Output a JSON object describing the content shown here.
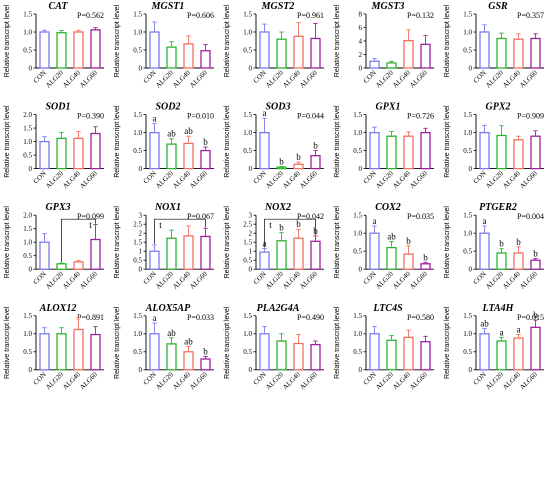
{
  "chart_data": {
    "type": "bar",
    "categories": [
      "CON",
      "ALG20",
      "ALG40",
      "ALG60"
    ],
    "series_colors": [
      "#7B7BEF",
      "#2DB52D",
      "#F07060",
      "#A020A0"
    ],
    "ylabel": "Relative transcript level",
    "panels": [
      {
        "title": "CAT",
        "pvalue": "P=0.562",
        "ylim": [
          0,
          1.5
        ],
        "ticks": [
          0,
          0.5,
          1.0,
          1.5
        ],
        "tick_labels": [
          "0",
          "0.5",
          "1.0",
          "1.5"
        ],
        "values": [
          1.0,
          0.98,
          1.0,
          1.06
        ],
        "errors": [
          0.05,
          0.06,
          0.05,
          0.06
        ],
        "letters": [
          "",
          "",
          "",
          ""
        ]
      },
      {
        "title": "MGST1",
        "pvalue": "P=0.606",
        "ylim": [
          0,
          1.5
        ],
        "ticks": [
          0,
          0.5,
          1.0,
          1.5
        ],
        "tick_labels": [
          "0",
          "0.5",
          "1.0",
          "1.5"
        ],
        "values": [
          1.0,
          0.58,
          0.67,
          0.48
        ],
        "errors": [
          0.28,
          0.15,
          0.22,
          0.17
        ],
        "letters": [
          "",
          "",
          "",
          ""
        ]
      },
      {
        "title": "MGST2",
        "pvalue": "P=0.961",
        "ylim": [
          0,
          1.5
        ],
        "ticks": [
          0,
          0.5,
          1.0,
          1.5
        ],
        "tick_labels": [
          "0",
          "0.5",
          "1.0",
          "1.5"
        ],
        "values": [
          1.0,
          0.8,
          0.88,
          0.82
        ],
        "errors": [
          0.22,
          0.2,
          0.38,
          0.42
        ],
        "letters": [
          "",
          "",
          "",
          ""
        ]
      },
      {
        "title": "MGST3",
        "pvalue": "P=0.132",
        "ylim": [
          0,
          8
        ],
        "ticks": [
          0,
          2,
          4,
          6,
          8
        ],
        "tick_labels": [
          "0",
          "2",
          "4",
          "6",
          "8"
        ],
        "values": [
          1.0,
          0.75,
          4.05,
          3.5
        ],
        "errors": [
          0.4,
          0.25,
          1.6,
          1.3
        ],
        "letters": [
          "",
          "",
          "",
          ""
        ]
      },
      {
        "title": "GSR",
        "pvalue": "P=0.357",
        "ylim": [
          0,
          1.5
        ],
        "ticks": [
          0,
          0.5,
          1.0,
          1.5
        ],
        "tick_labels": [
          "0",
          "0.5",
          "1.0",
          "1.5"
        ],
        "values": [
          1.0,
          0.82,
          0.8,
          0.82
        ],
        "errors": [
          0.2,
          0.15,
          0.15,
          0.13
        ],
        "letters": [
          "",
          "",
          "",
          ""
        ]
      },
      {
        "title": "SOD1",
        "pvalue": "P=0.390",
        "ylim": [
          0,
          2.0
        ],
        "ticks": [
          0,
          0.5,
          1.0,
          1.5,
          2.0
        ],
        "tick_labels": [
          "0",
          "0.5",
          "1.0",
          "1.5",
          "2.0"
        ],
        "values": [
          1.0,
          1.12,
          1.12,
          1.3
        ],
        "errors": [
          0.18,
          0.22,
          0.25,
          0.25
        ],
        "letters": [
          "",
          "",
          "",
          ""
        ]
      },
      {
        "title": "SOD2",
        "pvalue": "P=0.010",
        "ylim": [
          0,
          1.5
        ],
        "ticks": [
          0,
          0.5,
          1.0,
          1.5
        ],
        "tick_labels": [
          "0",
          "0.5",
          "1.0",
          "1.5"
        ],
        "values": [
          1.0,
          0.68,
          0.7,
          0.5
        ],
        "errors": [
          0.25,
          0.15,
          0.2,
          0.1
        ],
        "letters": [
          "a",
          "ab",
          "ab",
          "b"
        ]
      },
      {
        "title": "SOD3",
        "pvalue": "P=0.044",
        "ylim": [
          0,
          1.5
        ],
        "ticks": [
          0,
          0.5,
          1.0,
          1.5
        ],
        "tick_labels": [
          "0",
          "0.5",
          "1.0",
          "1.5"
        ],
        "values": [
          1.0,
          0.04,
          0.12,
          0.36
        ],
        "errors": [
          0.4,
          0.02,
          0.06,
          0.14
        ],
        "letters": [
          "a",
          "b",
          "b",
          "b"
        ]
      },
      {
        "title": "GPX1",
        "pvalue": "P=0.726",
        "ylim": [
          0,
          1.5
        ],
        "ticks": [
          0,
          0.5,
          1.0,
          1.5
        ],
        "tick_labels": [
          "0",
          "0.5",
          "1.0",
          "1.5"
        ],
        "values": [
          1.0,
          0.9,
          0.9,
          1.0
        ],
        "errors": [
          0.15,
          0.13,
          0.12,
          0.12
        ],
        "letters": [
          "",
          "",
          "",
          ""
        ]
      },
      {
        "title": "GPX2",
        "pvalue": "P=0.909",
        "ylim": [
          0,
          1.5
        ],
        "ticks": [
          0,
          0.5,
          1.0,
          1.5
        ],
        "tick_labels": [
          "0",
          "0.5",
          "1.0",
          "1.5"
        ],
        "values": [
          1.0,
          0.92,
          0.8,
          0.9
        ],
        "errors": [
          0.2,
          0.27,
          0.1,
          0.15
        ],
        "letters": [
          "",
          "",
          "",
          ""
        ]
      },
      {
        "title": "GPX3",
        "pvalue": "P=0.099",
        "ylim": [
          0,
          2.0
        ],
        "ticks": [
          0,
          0.5,
          1.0,
          1.5,
          2.0
        ],
        "tick_labels": [
          "0",
          "0.5",
          "1.0",
          "1.5",
          "2.0"
        ],
        "values": [
          1.0,
          0.2,
          0.27,
          1.1
        ],
        "errors": [
          0.32,
          0.03,
          0.05,
          0.55
        ],
        "letters": [
          "",
          "",
          "",
          ""
        ],
        "bracket": {
          "from": 1,
          "to": 3,
          "label": "t"
        }
      },
      {
        "title": "NOX1",
        "pvalue": "P=0.067",
        "ylim": [
          0,
          3.0
        ],
        "ticks": [
          0,
          0.5,
          1.0,
          1.5,
          2.0,
          2.5,
          3.0
        ],
        "tick_labels": [
          "0",
          "0.5",
          "1",
          "1.5",
          "2",
          "2.5",
          "3"
        ],
        "values": [
          1.0,
          1.72,
          1.85,
          1.82
        ],
        "errors": [
          0.35,
          0.45,
          0.55,
          0.45
        ],
        "letters": [
          "",
          "",
          "",
          ""
        ],
        "bracket": {
          "from": 0,
          "to": 3,
          "label": "t"
        }
      },
      {
        "title": "NOX2",
        "pvalue": "P=0.042",
        "ylim": [
          0,
          3.0
        ],
        "ticks": [
          0,
          0.5,
          1.0,
          1.5,
          2.0,
          2.5,
          3.0
        ],
        "tick_labels": [
          "0",
          "0.5",
          "1",
          "1.5",
          "2",
          "2.5",
          "3"
        ],
        "values": [
          0.95,
          1.58,
          1.72,
          1.55
        ],
        "errors": [
          0.2,
          0.45,
          0.5,
          0.3
        ],
        "letters": [
          "a",
          "b",
          "b",
          "b"
        ],
        "bracket": {
          "from": 0,
          "to": 3,
          "label": "t"
        }
      },
      {
        "title": "COX2",
        "pvalue": "P=0.035",
        "ylim": [
          0,
          1.5
        ],
        "ticks": [
          0,
          0.5,
          1.0,
          1.5
        ],
        "tick_labels": [
          "0",
          "0.5",
          "1.0",
          "1.5"
        ],
        "values": [
          1.0,
          0.6,
          0.42,
          0.15
        ],
        "errors": [
          0.2,
          0.17,
          0.23,
          0.04
        ],
        "letters": [
          "a",
          "ab",
          "b",
          "b"
        ]
      },
      {
        "title": "PTGER2",
        "pvalue": "P=0.004",
        "ylim": [
          0,
          1.5
        ],
        "ticks": [
          0,
          0.5,
          1.0,
          1.5
        ],
        "tick_labels": [
          "0",
          "0.5",
          "1.0",
          "1.5"
        ],
        "values": [
          1.0,
          0.45,
          0.45,
          0.25
        ],
        "errors": [
          0.2,
          0.12,
          0.17,
          0.05
        ],
        "letters": [
          "a",
          "b",
          "b",
          "b"
        ]
      },
      {
        "title": "ALOX12",
        "pvalue": "P=0.891",
        "ylim": [
          0,
          1.5
        ],
        "ticks": [
          0,
          0.5,
          1.0,
          1.5
        ],
        "tick_labels": [
          "0",
          "0.5",
          "1.0",
          "1.5"
        ],
        "values": [
          1.0,
          1.0,
          1.12,
          0.98
        ],
        "errors": [
          0.17,
          0.17,
          0.33,
          0.22
        ],
        "letters": [
          "",
          "",
          "",
          ""
        ]
      },
      {
        "title": "ALOX5AP",
        "pvalue": "P=0.033",
        "ylim": [
          0,
          1.5
        ],
        "ticks": [
          0,
          0.5,
          1.0,
          1.5
        ],
        "tick_labels": [
          "0",
          "0.5",
          "1.0",
          "1.5"
        ],
        "values": [
          1.0,
          0.72,
          0.5,
          0.3
        ],
        "errors": [
          0.3,
          0.17,
          0.15,
          0.07
        ],
        "letters": [
          "a",
          "ab",
          "ab",
          "b"
        ]
      },
      {
        "title": "PLA2G4A",
        "pvalue": "P=0.490",
        "ylim": [
          0,
          1.5
        ],
        "ticks": [
          0,
          0.5,
          1.0,
          1.5
        ],
        "tick_labels": [
          "0",
          "0.5",
          "1.0",
          "1.5"
        ],
        "values": [
          1.0,
          0.8,
          0.73,
          0.7
        ],
        "errors": [
          0.2,
          0.2,
          0.25,
          0.1
        ],
        "letters": [
          "",
          "",
          "",
          ""
        ]
      },
      {
        "title": "LTC4S",
        "pvalue": "P=0.580",
        "ylim": [
          0,
          1.5
        ],
        "ticks": [
          0,
          0.5,
          1.0,
          1.5
        ],
        "tick_labels": [
          "0",
          "0.5",
          "1.0",
          "1.5"
        ],
        "values": [
          1.0,
          0.82,
          0.9,
          0.78
        ],
        "errors": [
          0.2,
          0.13,
          0.2,
          0.15
        ],
        "letters": [
          "",
          "",
          "",
          ""
        ]
      },
      {
        "title": "LTA4H",
        "pvalue": "P=0.015",
        "ylim": [
          0,
          1.5
        ],
        "ticks": [
          0,
          0.5,
          1.0,
          1.5
        ],
        "tick_labels": [
          "0",
          "0.5",
          "1.0",
          "1.5"
        ],
        "values": [
          1.0,
          0.8,
          0.88,
          1.18
        ],
        "errors": [
          0.15,
          0.1,
          0.1,
          0.2
        ],
        "letters": [
          "ab",
          "a",
          "a",
          "b"
        ]
      }
    ]
  }
}
